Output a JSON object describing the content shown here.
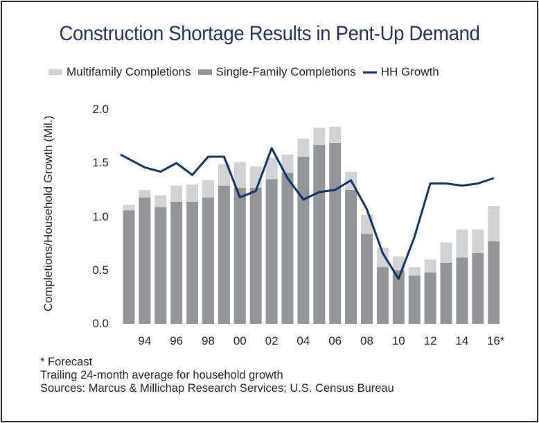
{
  "chart_data": {
    "type": "bar",
    "stacked": true,
    "title": "Construction Shortage Results in Pent-Up Demand",
    "ylabel": "Completions/Household Growth (Mil.)",
    "xlabel": "",
    "ylim": [
      0,
      2.0
    ],
    "yticks": [
      "0.0",
      "0.5",
      "1.0",
      "1.5",
      "2.0"
    ],
    "ytick_values": [
      0,
      0.5,
      1.0,
      1.5,
      2.0
    ],
    "years": [
      1993,
      1994,
      1995,
      1996,
      1997,
      1998,
      1999,
      2000,
      2001,
      2002,
      2003,
      2004,
      2005,
      2006,
      2007,
      2008,
      2009,
      2010,
      2011,
      2012,
      2013,
      2014,
      2015,
      2016
    ],
    "xtick_labels": [
      {
        "year": 1994,
        "label": "94"
      },
      {
        "year": 1996,
        "label": "96"
      },
      {
        "year": 1998,
        "label": "98"
      },
      {
        "year": 2000,
        "label": "00"
      },
      {
        "year": 2002,
        "label": "02"
      },
      {
        "year": 2004,
        "label": "04"
      },
      {
        "year": 2006,
        "label": "06"
      },
      {
        "year": 2008,
        "label": "08"
      },
      {
        "year": 2010,
        "label": "10"
      },
      {
        "year": 2012,
        "label": "12"
      },
      {
        "year": 2014,
        "label": "14"
      },
      {
        "year": 2016,
        "label": "16*"
      }
    ],
    "series": [
      {
        "name": "Single-Family Completions",
        "kind": "bar",
        "color": "#939598",
        "values": [
          1.06,
          1.18,
          1.09,
          1.14,
          1.14,
          1.18,
          1.29,
          1.27,
          1.27,
          1.35,
          1.41,
          1.56,
          1.67,
          1.69,
          1.25,
          0.84,
          0.53,
          0.5,
          0.45,
          0.48,
          0.57,
          0.62,
          0.66,
          0.77
        ]
      },
      {
        "name": "Multifamily Completions",
        "kind": "bar",
        "color": "#d2d3d5",
        "values": [
          0.05,
          0.07,
          0.11,
          0.15,
          0.16,
          0.16,
          0.2,
          0.24,
          0.2,
          0.2,
          0.17,
          0.17,
          0.16,
          0.15,
          0.17,
          0.18,
          0.18,
          0.13,
          0.08,
          0.12,
          0.19,
          0.26,
          0.22,
          0.33
        ]
      },
      {
        "name": "HH Growth",
        "kind": "line",
        "color": "#0d3268",
        "values": [
          1.58,
          1.46,
          1.42,
          1.5,
          1.39,
          1.56,
          1.56,
          1.18,
          1.24,
          1.64,
          1.36,
          1.16,
          1.23,
          1.25,
          1.34,
          1.07,
          0.66,
          0.42,
          0.81,
          1.31,
          1.31,
          1.29,
          1.31,
          1.36
        ]
      }
    ],
    "legend": [
      "Multifamily Completions",
      "Single-Family Completions",
      "HH Growth"
    ],
    "legend_position": "top",
    "grid": false
  },
  "notes": [
    "* Forecast",
    "Trailing 24-month average for household growth",
    "Sources: Marcus & Millichap Research Services; U.S. Census Bureau"
  ],
  "colors": {
    "title": "#1f2f5c",
    "single_family": "#939598",
    "multifamily": "#d2d3d5",
    "hh_growth": "#0d3268"
  }
}
